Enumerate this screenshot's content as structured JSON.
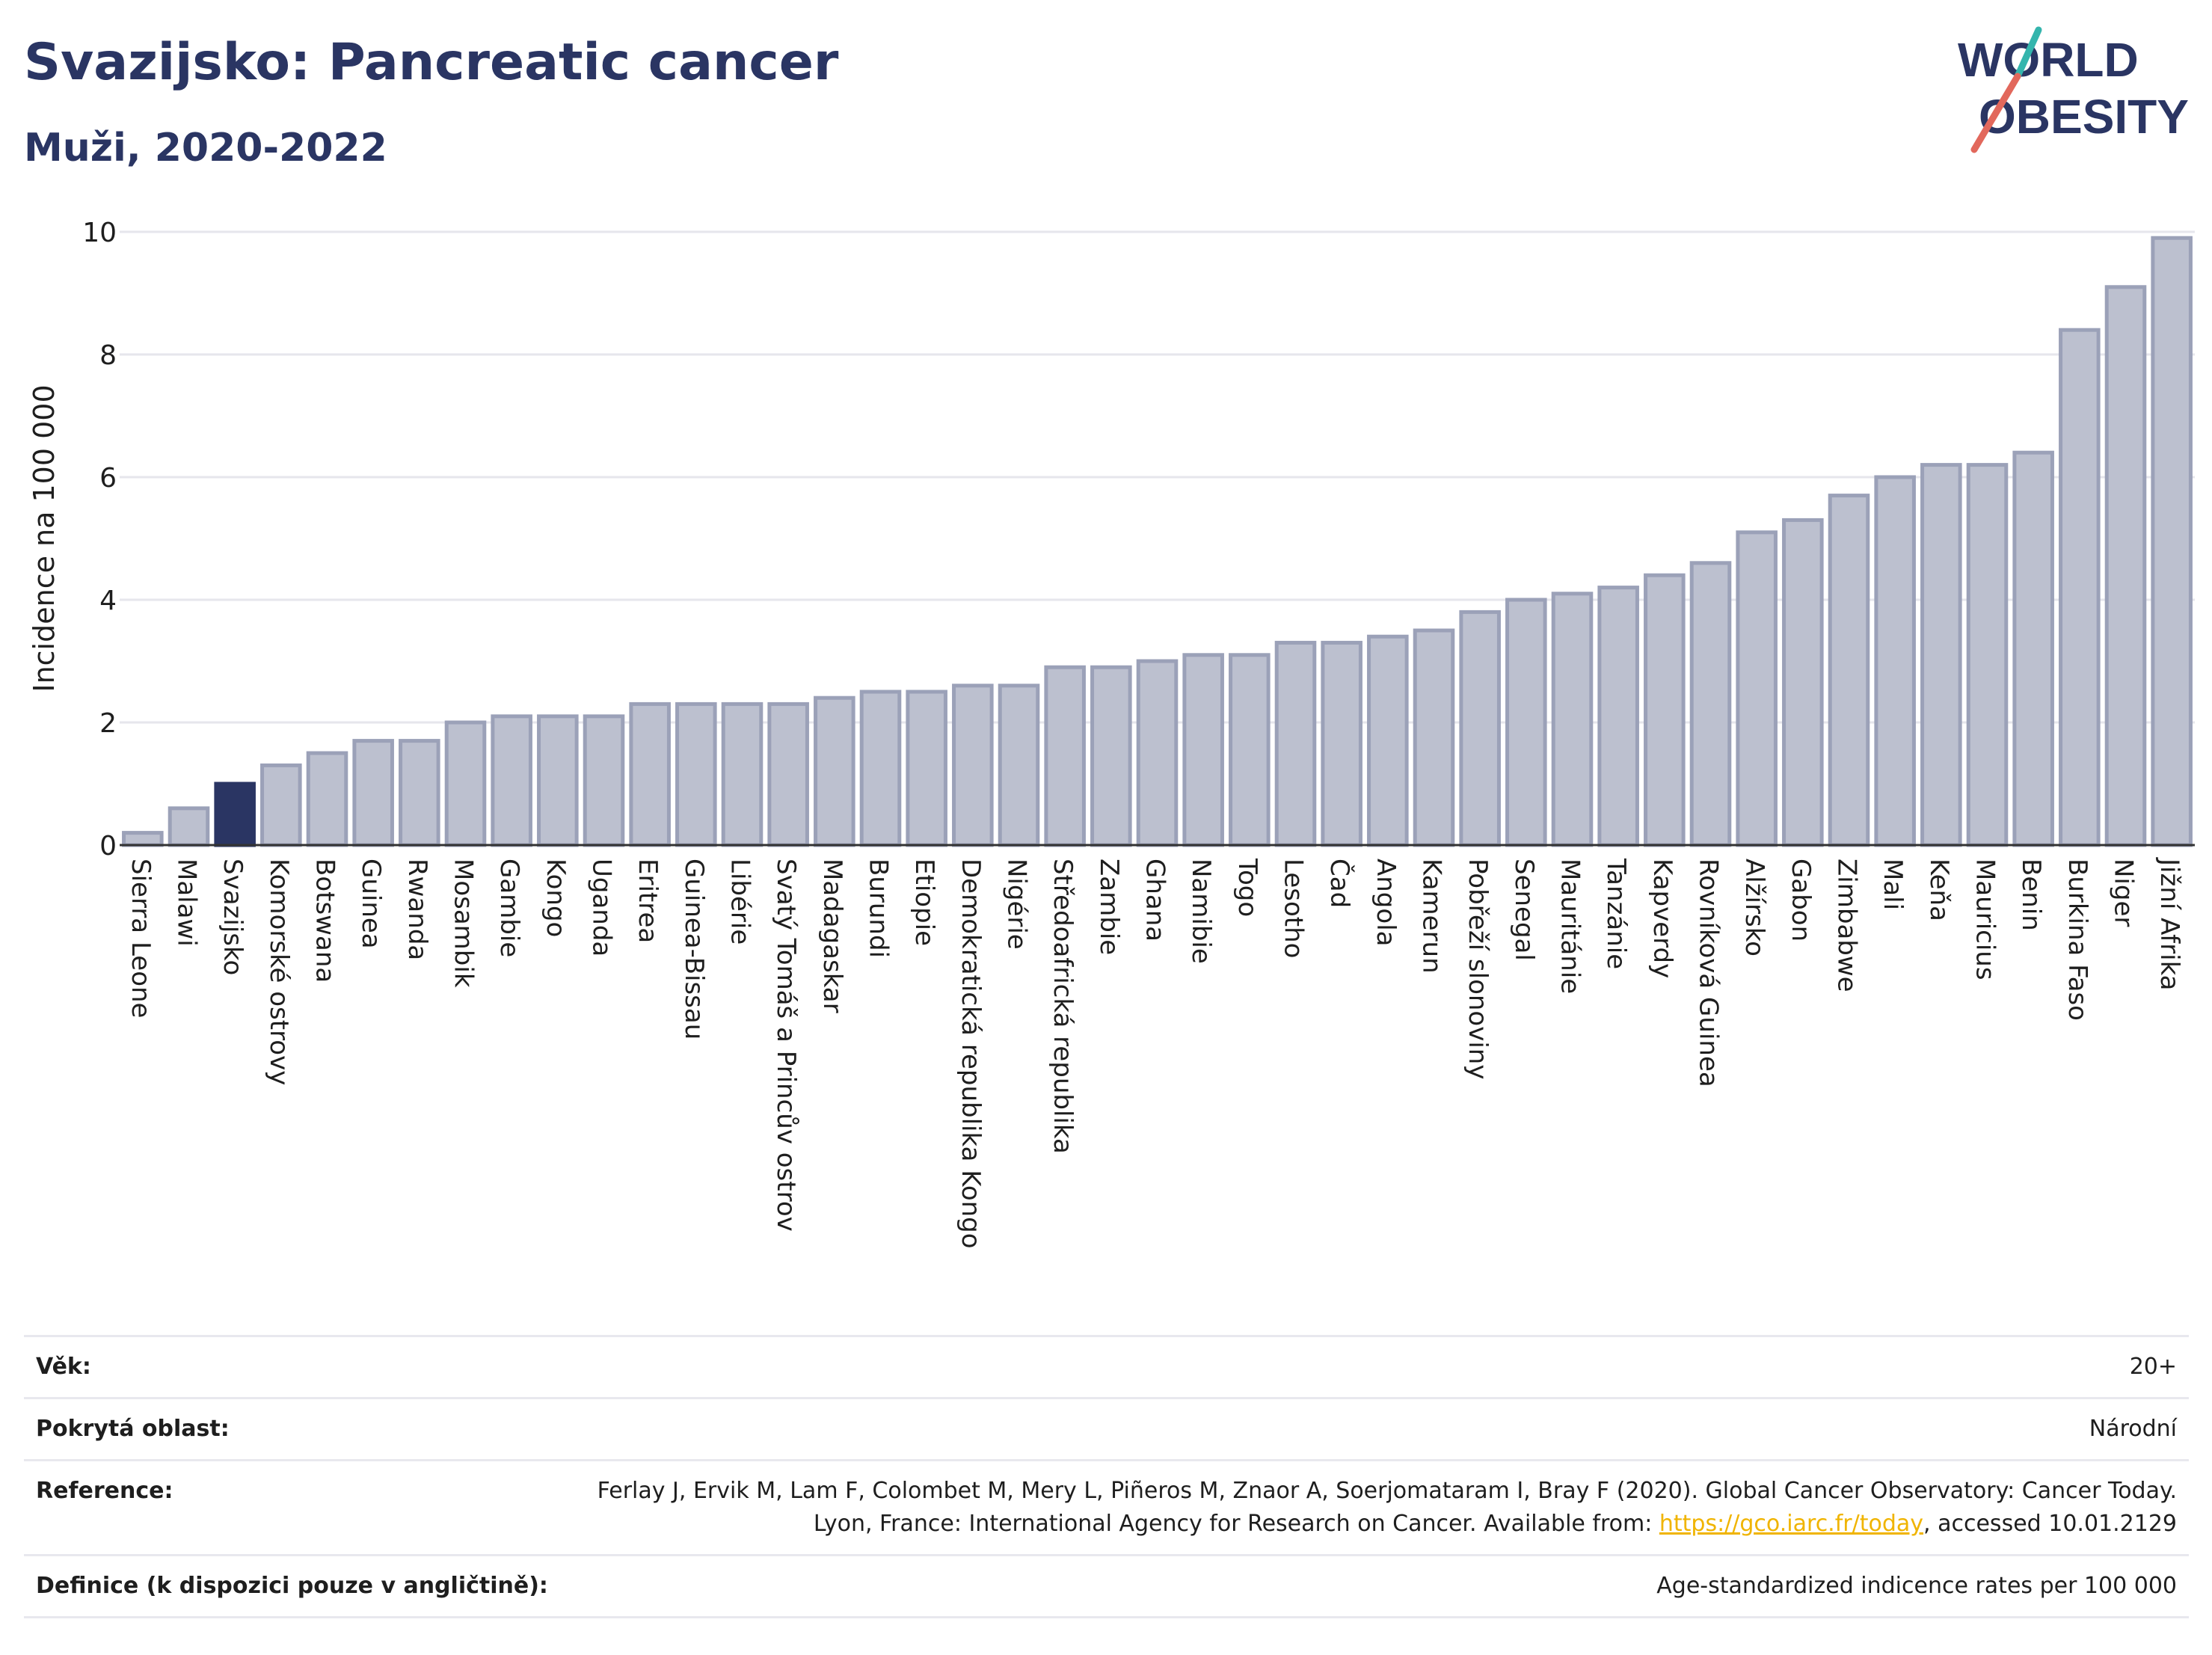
{
  "header": {
    "title": "Svazijsko: Pancreatic cancer",
    "subtitle": "Muži, 2020-2022",
    "logo_line1": "WORLD",
    "logo_line2": "OBESITY"
  },
  "colors": {
    "title": "#2a3563",
    "bar_default": "#bcc0cf",
    "bar_default_stroke": "#9ba1b8",
    "bar_highlight": "#2a3563",
    "logo_slash_red": "#e2685c",
    "logo_slash_teal": "#34b5ad",
    "link": "#f0b400"
  },
  "chart_data": {
    "type": "bar",
    "ylabel": "Incidence na 100 000",
    "ylim": [
      0,
      10
    ],
    "yticks": [
      0,
      2,
      4,
      6,
      8,
      10
    ],
    "grid": true,
    "highlight": "Svazijsko",
    "categories": [
      "Sierra Leone",
      "Malawi",
      "Svazijsko",
      "Komorské ostrovy",
      "Botswana",
      "Guinea",
      "Rwanda",
      "Mosambik",
      "Gambie",
      "Kongo",
      "Uganda",
      "Eritrea",
      "Guinea-Bissau",
      "Libérie",
      "Svatý Tomáš a Princův ostrov",
      "Madagaskar",
      "Burundi",
      "Etiopie",
      "Demokratická republika Kongo",
      "Nigérie",
      "Středoafrická republika",
      "Zambie",
      "Ghana",
      "Namibie",
      "Togo",
      "Lesotho",
      "Čad",
      "Angola",
      "Kamerun",
      "Pobřeží slonoviny",
      "Senegal",
      "Mauritánie",
      "Tanzánie",
      "Kapverdy",
      "Rovníková Guinea",
      "Alžírsko",
      "Gabon",
      "Zimbabwe",
      "Mali",
      "Keňa",
      "Mauricius",
      "Benin",
      "Burkina Faso",
      "Niger",
      "Jižní Afrika"
    ],
    "values": [
      0.2,
      0.6,
      1.0,
      1.3,
      1.5,
      1.7,
      1.7,
      2.0,
      2.1,
      2.1,
      2.1,
      2.3,
      2.3,
      2.3,
      2.3,
      2.4,
      2.5,
      2.5,
      2.6,
      2.6,
      2.9,
      2.9,
      3.0,
      3.1,
      3.1,
      3.3,
      3.3,
      3.4,
      3.5,
      3.8,
      4.0,
      4.1,
      4.2,
      4.4,
      4.6,
      5.1,
      5.3,
      5.7,
      6.0,
      6.2,
      6.2,
      6.4,
      8.4,
      9.1,
      9.9
    ]
  },
  "meta": [
    {
      "label": "Věk:",
      "value": "20+"
    },
    {
      "label": "Pokrytá oblast:",
      "value": "Národní"
    },
    {
      "label": "Reference:",
      "value_before": "Ferlay J, Ervik M, Lam F, Colombet M, Mery L, Piñeros M, Znaor A, Soerjomataram I, Bray F (2020). Global Cancer Observatory: Cancer Today. Lyon, France: International Agency for Research on Cancer. Available from: ",
      "link": "https://gco.iarc.fr/today",
      "value_after": ", accessed 10.01.2129"
    },
    {
      "label": "Definice (k dispozici pouze v angličtině):",
      "value": "Age-standardized indicence rates per 100 000"
    }
  ]
}
